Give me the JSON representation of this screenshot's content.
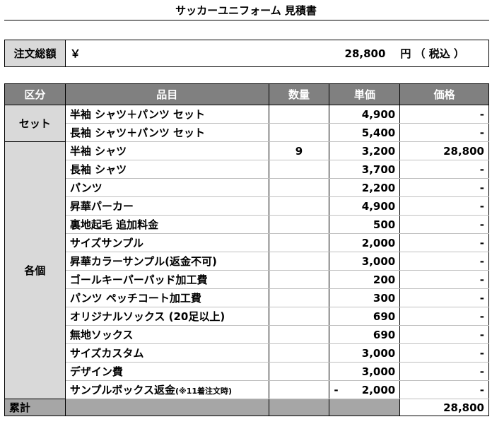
{
  "title": "サッカーユニフォーム 見積書",
  "order_total": {
    "label": "注文総額",
    "currency": "￥",
    "amount": "28,800",
    "unit": "円 （ 税込 ）"
  },
  "table": {
    "headers": [
      "区分",
      "品目",
      "数量",
      "単価",
      "価格"
    ],
    "groups": [
      {
        "category": "セット",
        "rows": [
          {
            "item": "半袖 シャツ＋パンツ セット",
            "qty": "",
            "unit_price": "4,900",
            "price": "-"
          },
          {
            "item": "長袖 シャツ＋パンツ セット",
            "qty": "",
            "unit_price": "5,400",
            "price": "-"
          }
        ]
      },
      {
        "category": "各個",
        "rows": [
          {
            "item": "半袖 シャツ",
            "qty": "9",
            "unit_price": "3,200",
            "price": "28,800"
          },
          {
            "item": "長袖 シャツ",
            "qty": "",
            "unit_price": "3,700",
            "price": "-"
          },
          {
            "item": "パンツ",
            "qty": "",
            "unit_price": "2,200",
            "price": "-"
          },
          {
            "item": "昇華パーカー",
            "qty": "",
            "unit_price": "4,900",
            "price": "-"
          },
          {
            "item": "裏地起毛 追加料金",
            "qty": "",
            "unit_price": "500",
            "price": "-"
          },
          {
            "item": "サイズサンプル",
            "qty": "",
            "unit_price": "2,000",
            "price": "-"
          },
          {
            "item": "昇華カラーサンプル(返金不可)",
            "qty": "",
            "unit_price": "3,000",
            "price": "-"
          },
          {
            "item": "ゴールキーパーパッド加工費",
            "qty": "",
            "unit_price": "200",
            "price": "-"
          },
          {
            "item": "パンツ ペッチコート加工費",
            "qty": "",
            "unit_price": "300",
            "price": "-"
          },
          {
            "item": "オリジナルソックス (20足以上)",
            "qty": "",
            "unit_price": "690",
            "price": "-"
          },
          {
            "item": "無地ソックス",
            "qty": "",
            "unit_price": "690",
            "price": "-"
          },
          {
            "item": "サイズカスタム",
            "qty": "",
            "unit_price": "3,000",
            "price": "-"
          },
          {
            "item": "デザイン費",
            "qty": "",
            "unit_price": "3,000",
            "price": "-"
          },
          {
            "item": "サンプルボックス返金",
            "item_note": "(※11着注文時)",
            "qty": "",
            "unit_prefix": "-",
            "unit_price": "2,000",
            "price": "-"
          }
        ]
      }
    ],
    "sum": {
      "label": "累計",
      "price": "28,800"
    }
  }
}
